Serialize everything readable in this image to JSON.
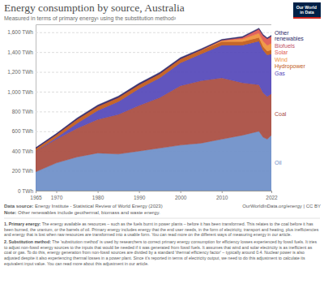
{
  "chart_data": {
    "type": "area",
    "title": "Energy consumption by source, Australia",
    "subtitle": "Measured in terms of primary energy¹ using the substitution method²",
    "data_source": {
      "label": "Data source:",
      "text": "Energy Institute - Statistical Review of World Energy (2023)"
    },
    "note": {
      "label": "Note:",
      "text": "Other renewables include geothermal, biomass and waste energy."
    },
    "source_url": "OurWorldInData.org/energy | CC BY",
    "logo": [
      "Our World",
      "in Data"
    ],
    "footnotes": [
      {
        "label": "1. Primary energy:",
        "text": "The energy available as resources – such as the fuels burnt in power plants – before it has been transformed. This relates to the coal before it has been burned, the uranium, or the barrels of oil. Primary energy includes energy that the end user needs, in the form of electricity, transport and heating, plus inefficiencies and energy that is lost when raw resources are transformed into a usable form. You can read more on the different ways of measuring energy in our article."
      },
      {
        "label": "2. Substitution method:",
        "text": "The 'substitution method' is used by researchers to correct primary energy consumption for efficiency losses experienced by fossil fuels. It tries to adjust non-fossil energy sources to the inputs that would be needed if it was generated from fossil fuels. It assumes that wind and solar electricity is as inefficient as coal or gas. To do this, energy generation from non-fossil sources are divided by a standard 'thermal efficiency factor' – typically around 0.4. Nuclear power is also adjusted despite it also experiencing thermal losses in a power plant. Since it's reported in terms of electricity output, we need to do this adjustment to calculate its equivalent input value. You can read more about this adjustment in our article."
      }
    ],
    "x": [
      1965,
      1970,
      1975,
      1980,
      1985,
      1990,
      1995,
      2000,
      2005,
      2010,
      2015,
      2019,
      2020,
      2021,
      2022
    ],
    "series": [
      {
        "name": "Oil",
        "color": "#6d8ec8",
        "values": [
          190,
          280,
          340,
          380,
          370,
          400,
          430,
          460,
          480,
          520,
          560,
          600,
          540,
          520,
          560
        ]
      },
      {
        "name": "Coal",
        "color": "#a84b3f",
        "values": [
          210,
          240,
          290,
          340,
          400,
          460,
          510,
          600,
          630,
          620,
          530,
          470,
          450,
          430,
          420
        ]
      },
      {
        "name": "Gas",
        "color": "#5446b8",
        "values": [
          0,
          15,
          50,
          90,
          130,
          170,
          200,
          230,
          270,
          330,
          380,
          440,
          430,
          420,
          400
        ]
      },
      {
        "name": "Hydropower",
        "color": "#c05917",
        "values": [
          25,
          30,
          40,
          40,
          40,
          40,
          40,
          40,
          38,
          35,
          35,
          36,
          36,
          40,
          42
        ]
      },
      {
        "name": "Wind",
        "color": "#f0913a",
        "values": [
          0,
          0,
          0,
          0,
          0,
          0,
          0,
          0,
          3,
          12,
          27,
          45,
          55,
          58,
          67
        ]
      },
      {
        "name": "Solar",
        "color": "#e0574f",
        "values": [
          0,
          0,
          0,
          0,
          0,
          0,
          0,
          0,
          0,
          1,
          14,
          40,
          55,
          65,
          70
        ]
      },
      {
        "name": "Biofuels",
        "color": "#c15065",
        "values": [
          0,
          0,
          0,
          0,
          0,
          0,
          0,
          0,
          0,
          2,
          1,
          1,
          1,
          1,
          1
        ]
      },
      {
        "name": "Other renewables",
        "color": "#2e2a6b",
        "values": [
          10,
          12,
          14,
          15,
          15,
          15,
          15,
          14,
          12,
          8,
          10,
          10,
          10,
          10,
          10
        ]
      }
    ],
    "xlim": [
      1965,
      2022
    ],
    "xticks": [
      1965,
      1970,
      1980,
      1990,
      2000,
      2010,
      2022
    ],
    "ylim": [
      0,
      1680
    ],
    "yticks": [
      {
        "value": 0,
        "label": "0 TWh"
      },
      {
        "value": 200,
        "label": "200 TWh"
      },
      {
        "value": 400,
        "label": "400 TWh"
      },
      {
        "value": 600,
        "label": "600 TWh"
      },
      {
        "value": 800,
        "label": "800 TWh"
      },
      {
        "value": 1000,
        "label": "1,000 TWh"
      },
      {
        "value": 1200,
        "label": "1,200 TWh"
      },
      {
        "value": 1400,
        "label": "1,400 TWh"
      },
      {
        "value": 1600,
        "label": "1,600 TWh"
      }
    ],
    "stacked": true,
    "grid": true,
    "legend": "right"
  }
}
